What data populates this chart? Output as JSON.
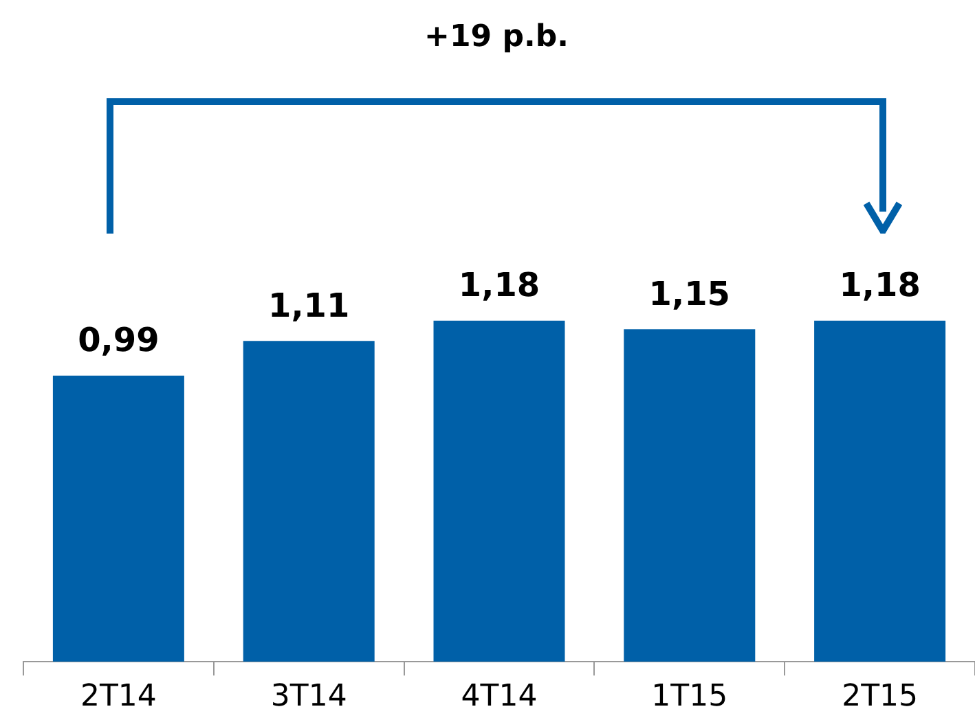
{
  "chart_data": {
    "type": "bar",
    "categories": [
      "2T14",
      "3T14",
      "4T14",
      "1T15",
      "2T15"
    ],
    "values": [
      0.99,
      1.11,
      1.18,
      1.15,
      1.18
    ],
    "value_labels": [
      "0,99",
      "1,11",
      "1,18",
      "1,15",
      "1,18"
    ],
    "color": "#0060a8",
    "annotations": [
      "+19 p.b."
    ],
    "grid": false,
    "legend": false
  }
}
